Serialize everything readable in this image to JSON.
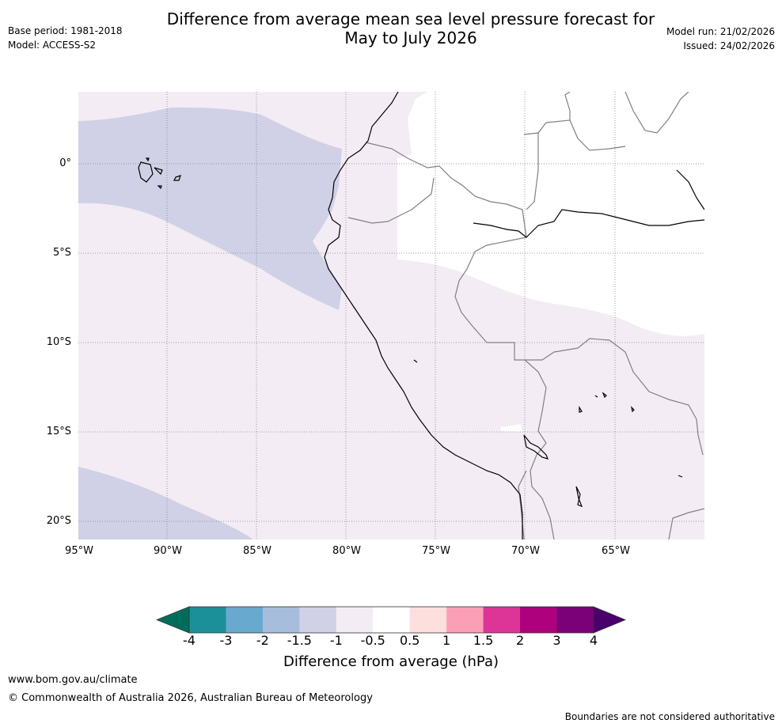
{
  "header": {
    "title_line1": "Difference from average mean sea level pressure forecast for",
    "title_line2": "May to July 2026",
    "base_period": "Base period: 1981-2018",
    "model": "Model: ACCESS-S2",
    "model_run": "Model run: 21/02/2026",
    "issued": "Issued: 24/02/2026"
  },
  "map": {
    "region": "Western South America",
    "lat_labels": [
      "0°",
      "5°S",
      "10°S",
      "15°S",
      "20°S"
    ],
    "lon_labels": [
      "95°W",
      "90°W",
      "85°W",
      "80°W",
      "75°W",
      "70°W",
      "65°W"
    ],
    "colors": {
      "neg_1_5": "#d0d1e6",
      "neg_1": "#f4ecf5",
      "neutral": "#ffffff",
      "coast": "#000000",
      "border": "#808080",
      "grid": "#808080"
    }
  },
  "colorbar": {
    "title": "Difference from average (hPa)",
    "tick_labels": [
      "-4",
      "-3",
      "-2",
      "-1.5",
      "-1",
      "-0.5",
      "0.5",
      "1",
      "1.5",
      "2",
      "3",
      "4"
    ],
    "colors": [
      "#006d5c",
      "#1c9099",
      "#67a9cf",
      "#a6bddb",
      "#d0d1e6",
      "#f4ecf5",
      "#ffffff",
      "#fde0dd",
      "#fa9fb5",
      "#dd3497",
      "#ae017e",
      "#7a0177",
      "#49006a"
    ]
  },
  "footer": {
    "url": "www.bom.gov.au/climate",
    "copyright": "© Commonwealth of Australia 2026, Australian Bureau of Meteorology",
    "disclaimer": "Boundaries are not considered authoritative"
  }
}
